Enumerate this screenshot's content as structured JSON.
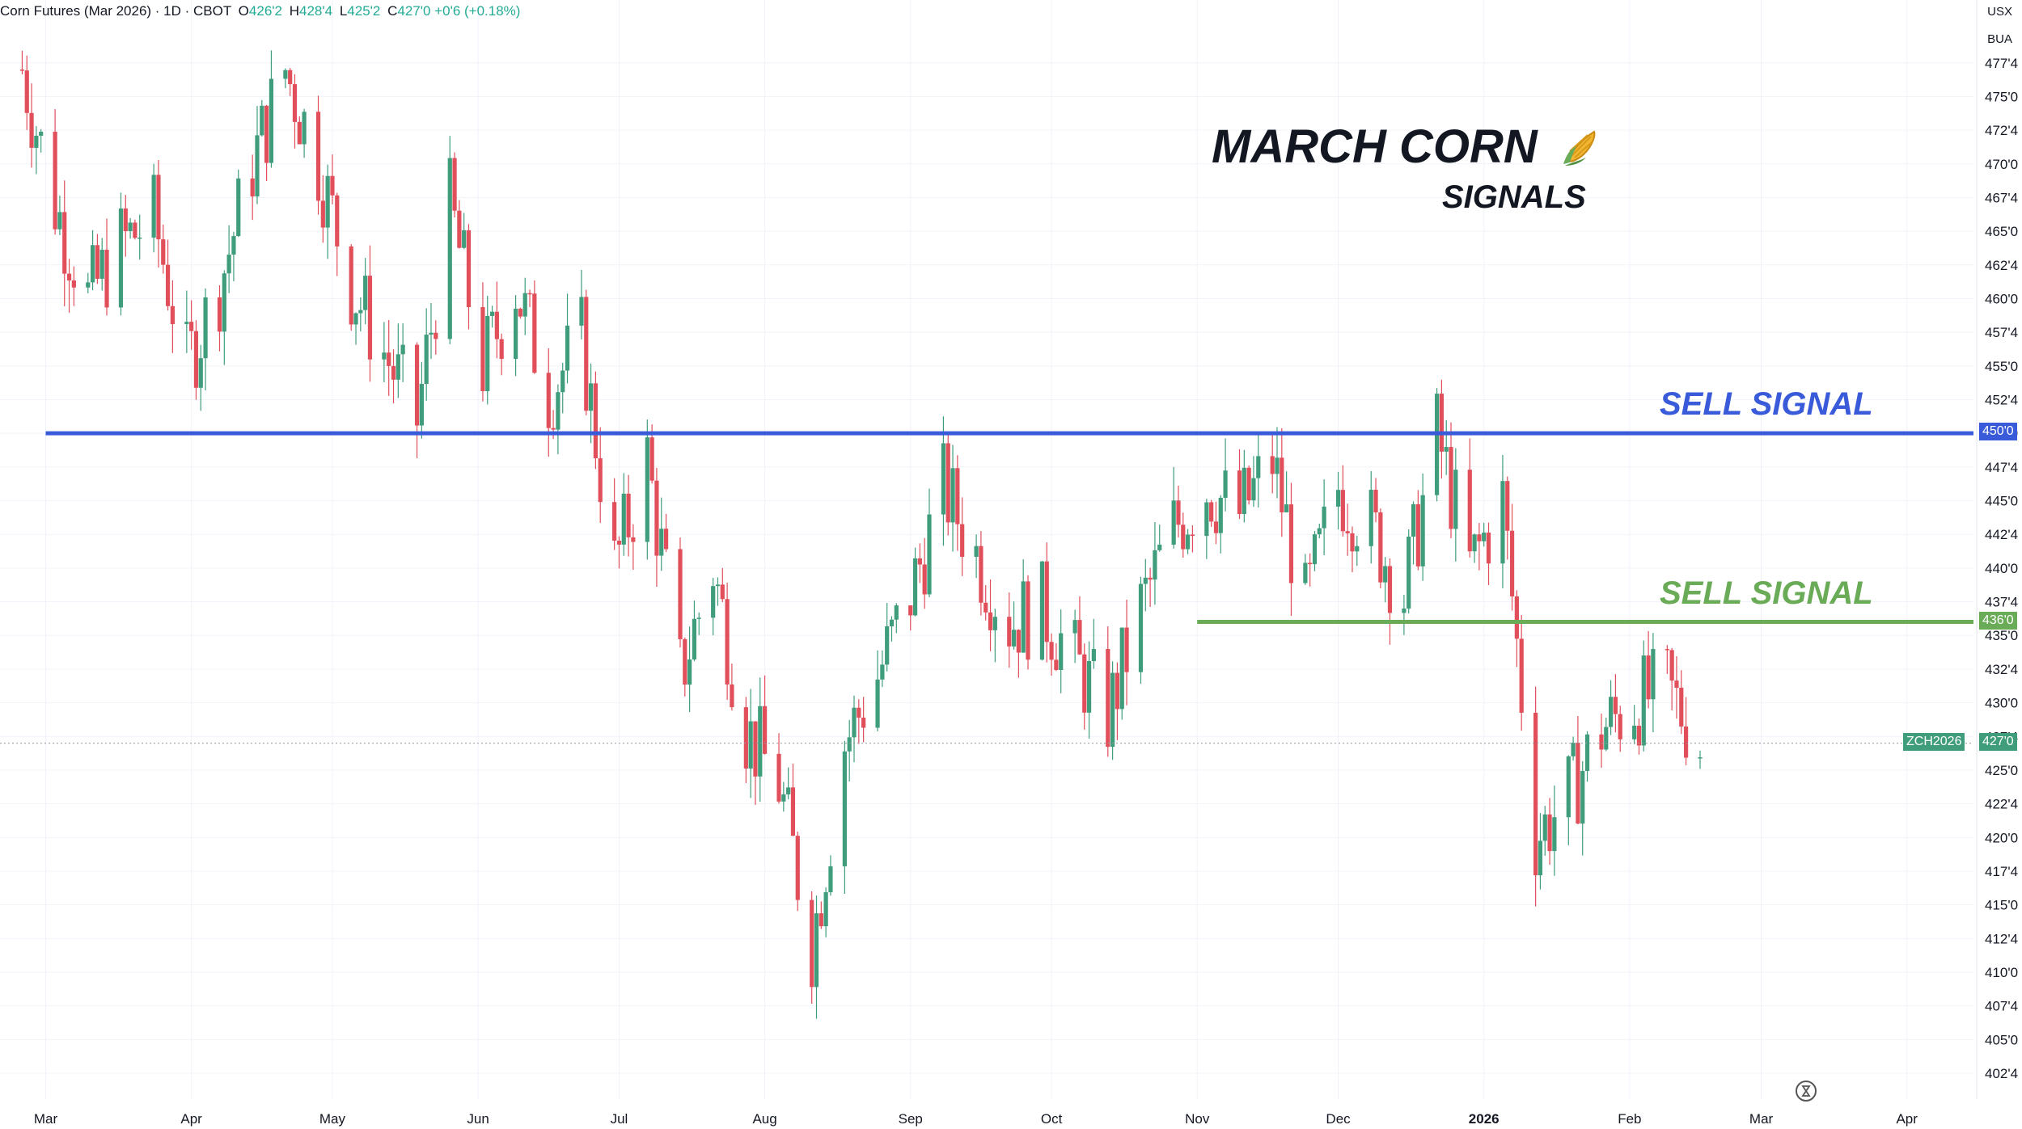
{
  "header": {
    "symbol": "Corn Futures (Mar 2026) · 1D · CBOT",
    "open_label": "O",
    "open": "426'2",
    "high_label": "H",
    "high": "428'4",
    "low_label": "L",
    "low": "425'2",
    "close_label": "C",
    "close": "427'0",
    "change": "+0'6 (+0.18%)"
  },
  "units": {
    "currency": "USX",
    "unit": "BUA"
  },
  "annotations": {
    "title": "MARCH CORN",
    "title_icon": "corn-icon",
    "subtitle": "SIGNALS",
    "sell_signal_upper": "SELL SIGNAL",
    "sell_signal_lower": "SELL SIGNAL"
  },
  "colors": {
    "up": "#3f9d7c",
    "down": "#e04f5a",
    "blue_line": "#3a5bd9",
    "green_line": "#6aab57"
  },
  "price_tags": {
    "upper_level": "450'0",
    "lower_level": "436'0",
    "last_symbol": "ZCH2026",
    "last_price": "427'0"
  },
  "chart_data": {
    "type": "candlestick",
    "y_axis_unit": "cents per bushel (eighths notation)",
    "ylim": [
      401,
      479
    ],
    "y_ticks": [
      "477'4",
      "475'0",
      "472'4",
      "470'0",
      "467'4",
      "465'0",
      "462'4",
      "460'0",
      "457'4",
      "455'0",
      "452'4",
      "450'0",
      "447'4",
      "445'0",
      "442'4",
      "440'0",
      "437'4",
      "435'0",
      "432'4",
      "430'0",
      "427'4",
      "425'0",
      "422'4",
      "420'0",
      "417'4",
      "415'0",
      "412'4",
      "410'0",
      "407'4",
      "405'0",
      "402'4"
    ],
    "x_ticks": [
      "Mar",
      "Apr",
      "May",
      "Jun",
      "Jul",
      "Aug",
      "Sep",
      "Oct",
      "Nov",
      "Dec",
      "2026",
      "Feb",
      "Mar",
      "Apr"
    ],
    "x_range": [
      "2025-02-21",
      "2026-04-10"
    ],
    "horizontal_lines": [
      {
        "label": "SELL SIGNAL",
        "value": 450.0,
        "from": "2025-03-01",
        "color": "#3a5bd9"
      },
      {
        "label": "SELL SIGNAL",
        "value": 436.0,
        "from": "2025-11-01",
        "color": "#6aab57"
      }
    ],
    "last_price": 427.0,
    "closes": [
      {
        "d": "2025-02-24",
        "c": 477
      },
      {
        "d": "2025-03-03",
        "c": 467
      },
      {
        "d": "2025-03-10",
        "c": 460
      },
      {
        "d": "2025-03-17",
        "c": 464
      },
      {
        "d": "2025-03-24",
        "c": 466
      },
      {
        "d": "2025-03-31",
        "c": 455
      },
      {
        "d": "2025-04-07",
        "c": 461
      },
      {
        "d": "2025-04-14",
        "c": 470
      },
      {
        "d": "2025-04-21",
        "c": 477
      },
      {
        "d": "2025-04-28",
        "c": 470
      },
      {
        "d": "2025-05-05",
        "c": 461
      },
      {
        "d": "2025-05-12",
        "c": 456
      },
      {
        "d": "2025-05-19",
        "c": 451
      },
      {
        "d": "2025-05-26",
        "c": 467
      },
      {
        "d": "2025-06-02",
        "c": 455
      },
      {
        "d": "2025-06-09",
        "c": 461
      },
      {
        "d": "2025-06-16",
        "c": 453
      },
      {
        "d": "2025-06-23",
        "c": 457
      },
      {
        "d": "2025-06-30",
        "c": 440
      },
      {
        "d": "2025-07-07",
        "c": 448
      },
      {
        "d": "2025-07-14",
        "c": 432
      },
      {
        "d": "2025-07-21",
        "c": 440
      },
      {
        "d": "2025-07-28",
        "c": 428
      },
      {
        "d": "2025-08-04",
        "c": 424
      },
      {
        "d": "2025-08-11",
        "c": 412
      },
      {
        "d": "2025-08-18",
        "c": 427
      },
      {
        "d": "2025-08-25",
        "c": 432
      },
      {
        "d": "2025-09-01",
        "c": 438
      },
      {
        "d": "2025-09-08",
        "c": 446
      },
      {
        "d": "2025-09-15",
        "c": 441
      },
      {
        "d": "2025-09-22",
        "c": 436
      },
      {
        "d": "2025-09-29",
        "c": 437
      },
      {
        "d": "2025-10-06",
        "c": 433
      },
      {
        "d": "2025-10-13",
        "c": 429
      },
      {
        "d": "2025-10-20",
        "c": 437
      },
      {
        "d": "2025-10-27",
        "c": 443
      },
      {
        "d": "2025-11-03",
        "c": 446
      },
      {
        "d": "2025-11-10",
        "c": 444
      },
      {
        "d": "2025-11-17",
        "c": 448
      },
      {
        "d": "2025-11-24",
        "c": 437
      },
      {
        "d": "2025-12-01",
        "c": 446
      },
      {
        "d": "2025-12-08",
        "c": 443
      },
      {
        "d": "2025-12-15",
        "c": 438
      },
      {
        "d": "2025-12-22",
        "c": 450
      },
      {
        "d": "2025-12-29",
        "c": 440
      },
      {
        "d": "2026-01-05",
        "c": 445
      },
      {
        "d": "2026-01-12",
        "c": 420
      },
      {
        "d": "2026-01-19",
        "c": 423
      },
      {
        "d": "2026-01-26",
        "c": 428
      },
      {
        "d": "2026-02-02",
        "c": 430
      },
      {
        "d": "2026-02-09",
        "c": 431
      },
      {
        "d": "2026-02-16",
        "c": 427
      }
    ]
  }
}
